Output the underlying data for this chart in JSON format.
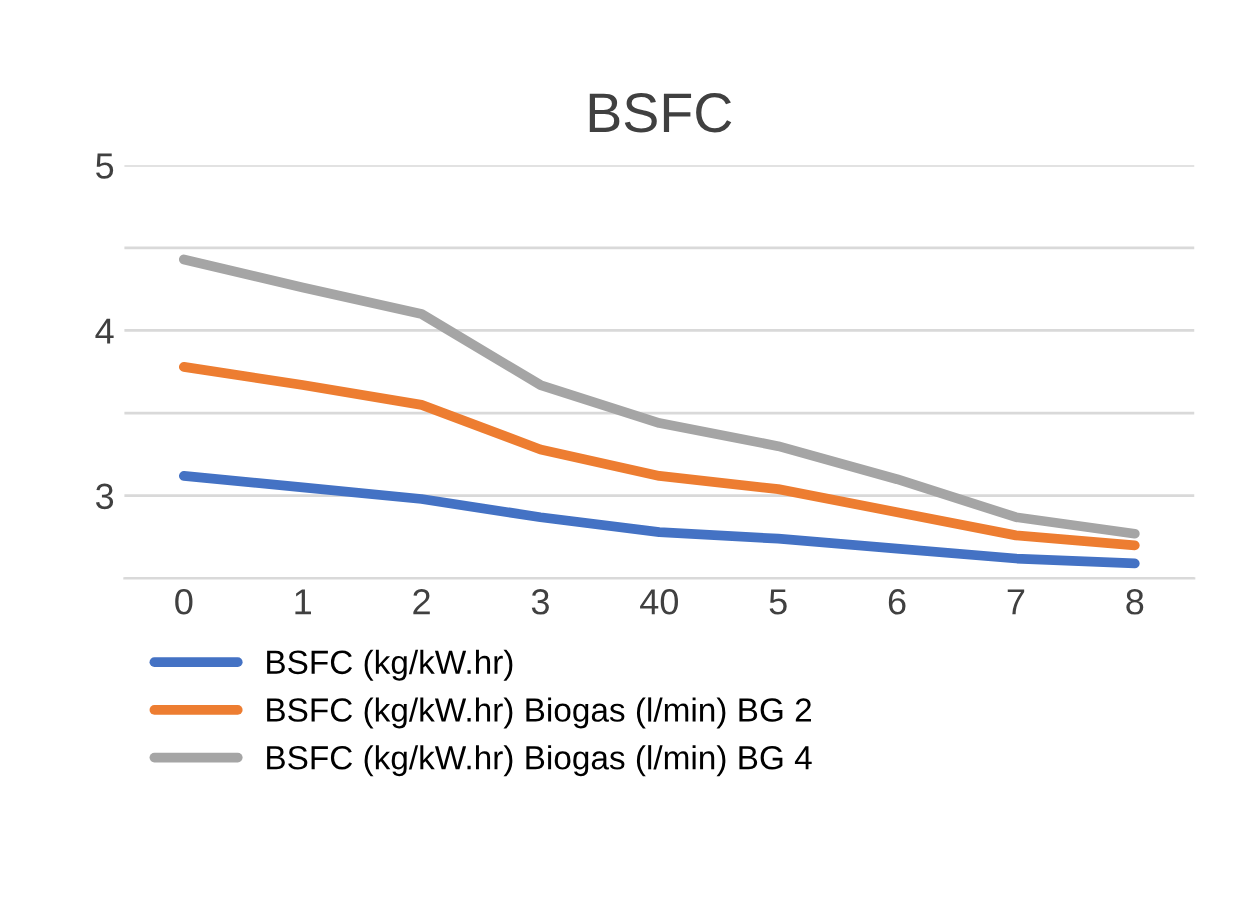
{
  "chart_data": {
    "type": "line",
    "title": "BSFC",
    "categories": [
      "0",
      "1",
      "2",
      "3",
      "40",
      "5",
      "6",
      "7",
      "8"
    ],
    "series": [
      {
        "name": "BSFC (kg/kW.hr)",
        "color": "#4472c4",
        "values": [
          3.12,
          3.05,
          2.98,
          2.87,
          2.78,
          2.74,
          2.68,
          2.62,
          2.59
        ]
      },
      {
        "name": "BSFC (kg/kW.hr) Biogas (l/min) BG 2",
        "color": "#ed7d31",
        "values": [
          3.78,
          3.67,
          3.55,
          3.28,
          3.12,
          3.04,
          2.9,
          2.76,
          2.7
        ]
      },
      {
        "name": "BSFC (kg/kW.hr) Biogas (l/min) BG 4",
        "color": "#a5a5a5",
        "values": [
          4.43,
          4.26,
          4.1,
          3.67,
          3.44,
          3.3,
          3.1,
          2.87,
          2.77
        ]
      }
    ],
    "ylim": [
      2.5,
      5
    ],
    "yticks": [
      5,
      {
        "value": 4.5,
        "label": null
      },
      4,
      {
        "value": 3.5,
        "label": null
      },
      3,
      {
        "value": 2.5,
        "label": null
      }
    ],
    "grid": "y",
    "legend": "bottom",
    "marker": "none",
    "line_style": "solid"
  }
}
